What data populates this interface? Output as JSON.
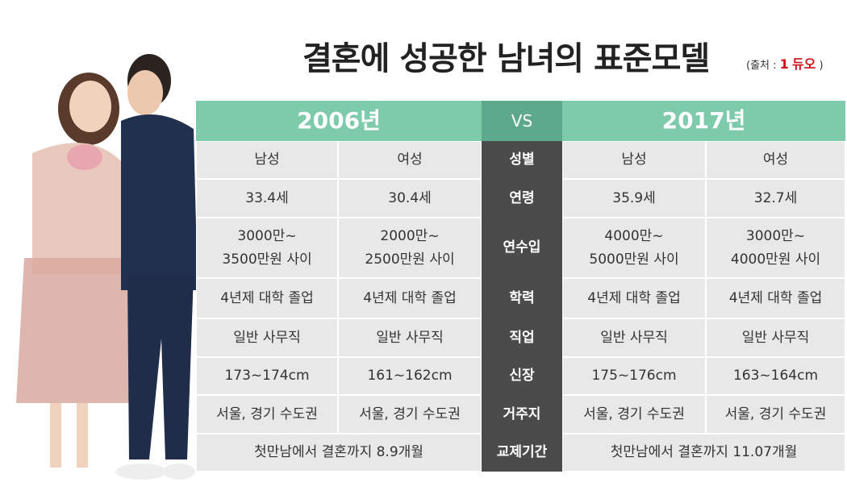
{
  "header": {
    "title": "결혼에 성공한 남녀의 표준모델",
    "source_prefix": "(출처 :",
    "brand_mark": "1",
    "brand": "듀오",
    "source_suffix": ")"
  },
  "table": {
    "columns": [
      "2006년",
      "VS",
      "2017년"
    ],
    "rows": [
      {
        "label": "성별",
        "cells": [
          [
            "남성"
          ],
          [
            "여성"
          ],
          [
            "남성"
          ],
          [
            "여성"
          ]
        ]
      },
      {
        "label": "연령",
        "cells": [
          [
            "33.4세"
          ],
          [
            "30.4세"
          ],
          [
            "35.9세"
          ],
          [
            "32.7세"
          ]
        ]
      },
      {
        "label": "연수입",
        "cells": [
          [
            "3000만~",
            "3500만원 사이"
          ],
          [
            "2000만~",
            "2500만원 사이"
          ],
          [
            "4000만~",
            "5000만원 사이"
          ],
          [
            "3000만~",
            "4000만원 사이"
          ]
        ]
      },
      {
        "label": "학력",
        "cells": [
          [
            "4년제 대학 졸업"
          ],
          [
            "4년제 대학 졸업"
          ],
          [
            "4년제 대학 졸업"
          ],
          [
            "4년제 대학 졸업"
          ]
        ]
      },
      {
        "label": "직업",
        "cells": [
          [
            "일반 사무직"
          ],
          [
            "일반 사무직"
          ],
          [
            "일반 사무직"
          ],
          [
            "일반 사무직"
          ]
        ]
      },
      {
        "label": "신장",
        "cells": [
          [
            "173~174cm"
          ],
          [
            "161~162cm"
          ],
          [
            "175~176cm"
          ],
          [
            "163~164cm"
          ]
        ]
      },
      {
        "label": "거주지",
        "cells": [
          [
            "서울, 경기 수도권"
          ],
          [
            "서울, 경기 수도권"
          ],
          [
            "서울, 경기 수도권"
          ],
          [
            "서울, 경기 수도권"
          ]
        ]
      }
    ],
    "last_row": {
      "label": "교제기간",
      "cells": [
        "첫만남에서 결혼까지 8.9개월",
        "첫만남에서 결혼까지 11.07개월"
      ]
    }
  }
}
